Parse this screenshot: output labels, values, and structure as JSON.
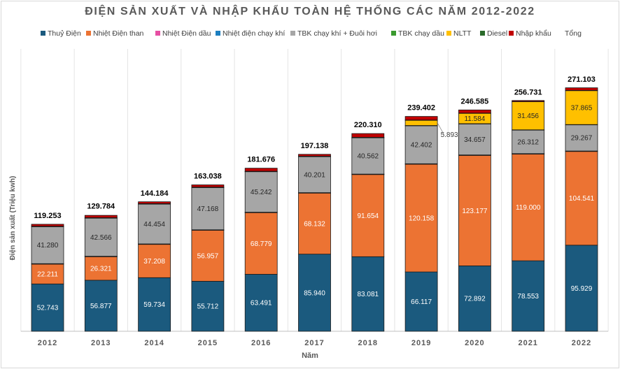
{
  "chart_data": {
    "type": "bar",
    "stacked": true,
    "title": "ĐIỆN SẢN XUẤT VÀ NHẬP KHẨU TOÀN HỆ THỐNG CÁC NĂM 2012-2022",
    "xlabel": "Năm",
    "ylabel": "Điện sản xuất (Triệu kwh)",
    "ylim": [
      0,
      285
    ],
    "grid": false,
    "legend_position": "top",
    "categories": [
      "2012",
      "2013",
      "2014",
      "2015",
      "2016",
      "2017",
      "2018",
      "2019",
      "2020",
      "2021",
      "2022"
    ],
    "series": [
      {
        "name": "Thuỷ Điện",
        "color": "#1b5a7e",
        "labels": [
          "52.743",
          "56.877",
          "59.734",
          "55.712",
          "63.491",
          "85.940",
          "83.081",
          "66.117",
          "72.892",
          "78.553",
          "95.929"
        ],
        "values": [
          52.743,
          56.877,
          59.734,
          55.712,
          63.491,
          85.94,
          83.081,
          66.117,
          72.892,
          78.553,
          95.929
        ]
      },
      {
        "name": "Nhiệt Điện than",
        "color": "#ec7333",
        "labels": [
          "22.211",
          "26.321",
          "37.208",
          "56.957",
          "68.779",
          "68.132",
          "91.654",
          "120.158",
          "123.177",
          "119.000",
          "104.541"
        ],
        "values": [
          22.211,
          26.321,
          37.208,
          56.957,
          68.779,
          68.132,
          91.654,
          120.158,
          123.177,
          119.0,
          104.541
        ]
      },
      {
        "name": "Nhiệt Điện dầu",
        "color": "#e64fa3",
        "labels": [
          "",
          "",
          "",
          "",
          "",
          "",
          "",
          "",
          "",
          "",
          ""
        ],
        "values": [
          0.2,
          0.2,
          0.2,
          0.2,
          0.2,
          0.2,
          0.2,
          0.2,
          0.2,
          0.2,
          0.2
        ]
      },
      {
        "name": "Nhiệt điện chạy khí",
        "color": "#1c7fc0",
        "labels": [
          "",
          "",
          "",
          "",
          "",
          "",
          "",
          "",
          "",
          "",
          ""
        ],
        "values": [
          0.2,
          0.2,
          0.2,
          0.2,
          0.2,
          0.2,
          0.2,
          0.2,
          0.2,
          0.2,
          0.2
        ]
      },
      {
        "name": "TBK chạy khí + Đuôi hơi",
        "color": "#a6a6a6",
        "labels": [
          "41.280",
          "42.566",
          "44.454",
          "47.168",
          "45.242",
          "40.201",
          "40.562",
          "42.402",
          "34.657",
          "26.312",
          "29.267"
        ],
        "values": [
          41.28,
          42.566,
          44.454,
          47.168,
          45.242,
          40.201,
          40.562,
          42.402,
          34.657,
          26.312,
          29.267
        ]
      },
      {
        "name": "TBK chạy dầu",
        "color": "#3a9a2e",
        "labels": [
          "",
          "",
          "",
          "",
          "",
          "",
          "",
          "",
          "",
          "",
          ""
        ],
        "values": [
          0.2,
          0.2,
          0.2,
          0.2,
          0.2,
          0.2,
          0.2,
          0.2,
          0.2,
          0.2,
          0.2
        ]
      },
      {
        "name": "NLTT",
        "color": "#ffc000",
        "labels": [
          "",
          "",
          "",
          "",
          "",
          "",
          "",
          "5.893",
          "11.584",
          "31.456",
          "37.865"
        ],
        "values": [
          0,
          0,
          0,
          0,
          0,
          0,
          0,
          5.893,
          11.584,
          31.456,
          37.865
        ]
      },
      {
        "name": "Diesel",
        "color": "#2a6a2a",
        "labels": [
          "",
          "",
          "",
          "",
          "",
          "",
          "",
          "",
          "",
          "",
          ""
        ],
        "values": [
          0.2,
          0.2,
          0.2,
          0.2,
          0.2,
          0.2,
          0.2,
          0.2,
          0.2,
          0.2,
          0.2
        ]
      },
      {
        "name": "Nhập khẩu",
        "color": "#c00000",
        "labels": [
          "",
          "",
          "",
          "",
          "",
          "",
          "",
          "",
          "",
          "",
          ""
        ],
        "values": [
          2.2,
          2.6,
          2.1,
          2.5,
          3.4,
          2.1,
          4.2,
          4.0,
          3.5,
          1.0,
          2.9
        ]
      }
    ],
    "totals_name": "Tổng",
    "totals": [
      "119.253",
      "129.784",
      "144.184",
      "163.038",
      "181.676",
      "197.138",
      "220.310",
      "239.402",
      "246.585",
      "256.731",
      "271.103"
    ],
    "totals_values": [
      119.253,
      129.784,
      144.184,
      163.038,
      181.676,
      197.138,
      220.31,
      239.402,
      246.585,
      256.731,
      271.103
    ]
  }
}
